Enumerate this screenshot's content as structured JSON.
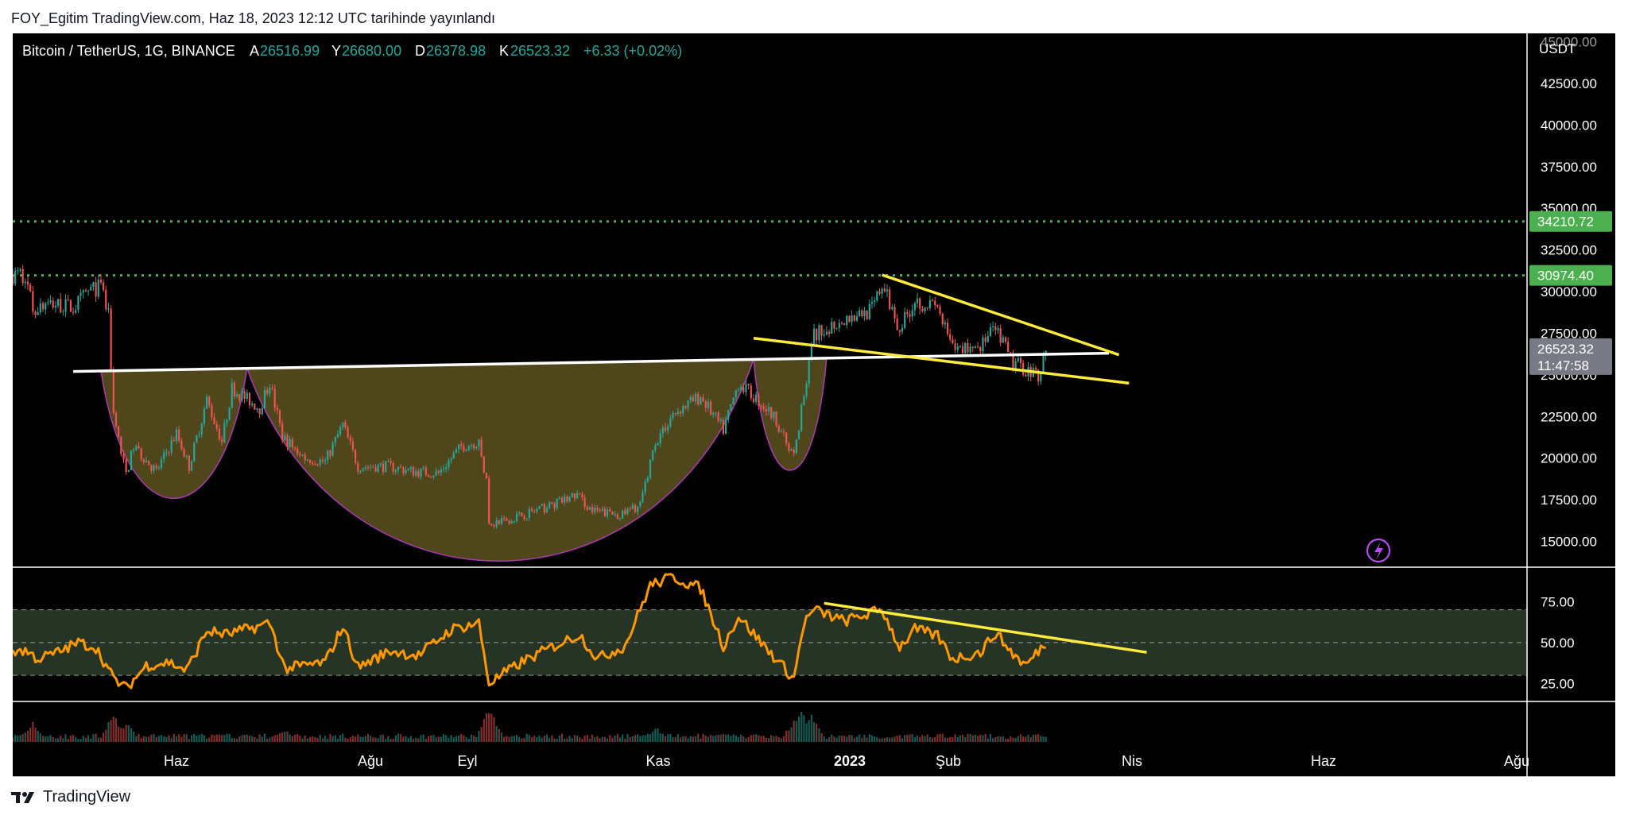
{
  "header": {
    "published": "FOY_Egitim TradingView.com, Haz 18, 2023 12:12 UTC tarihinde yayınlandı"
  },
  "legend": {
    "symbol": "Bitcoin / TetherUS, 1G, BINANCE",
    "o_label": "A",
    "o_value": "26516.99",
    "h_label": "Y",
    "h_value": "26680.00",
    "l_label": "D",
    "l_value": "26378.98",
    "c_label": "K",
    "c_value": "26523.32",
    "change": "+6.33 (+0.02%)"
  },
  "price_axis": {
    "currency": "USDT",
    "ticks": [
      "45000.00",
      "42500.00",
      "40000.00",
      "37500.00",
      "35000.00",
      "32500.00",
      "30000.00",
      "27500.00",
      "25000.00",
      "22500.00",
      "20000.00",
      "17500.00",
      "15000.00"
    ]
  },
  "levels": [
    {
      "value": "34210.72",
      "color": "#4caf50"
    },
    {
      "value": "30974.40",
      "color": "#4caf50"
    }
  ],
  "last_price": {
    "value": "26523.32",
    "countdown": "11:47:58",
    "color": "#787b86"
  },
  "rsi_axis": {
    "ticks": [
      "75.00",
      "50.00",
      "25.00"
    ]
  },
  "time_axis": {
    "labels": [
      {
        "text": "Haz",
        "bold": false
      },
      {
        "text": "Ağu",
        "bold": false
      },
      {
        "text": "Eyl",
        "bold": false
      },
      {
        "text": "Kas",
        "bold": false
      },
      {
        "text": "2023",
        "bold": true
      },
      {
        "text": "Şub",
        "bold": false
      },
      {
        "text": "Nis",
        "bold": false
      },
      {
        "text": "Haz",
        "bold": false
      },
      {
        "text": "Ağu",
        "bold": false
      }
    ]
  },
  "footer": {
    "brand": "TradingView"
  },
  "colors": {
    "up": "#26a69a",
    "down": "#ef5350",
    "background": "#000000",
    "level_line": "#4caf50",
    "trendline": "#ffeb3b",
    "neckline": "#ffffff",
    "rsi_line": "#ff9800",
    "cup_fill": "#5d5320",
    "cup_stroke": "#e040fb"
  },
  "chart_data": {
    "type": "candlestick",
    "price_range": [
      13500,
      45500
    ],
    "rsi_range": [
      15,
      95
    ],
    "price_series": [
      {
        "d": "2022-05-09",
        "p": 31000
      },
      {
        "d": "2022-05-12",
        "p": 29000
      },
      {
        "d": "2022-05-20",
        "p": 29300
      },
      {
        "d": "2022-05-28",
        "p": 29000
      },
      {
        "d": "2022-06-03",
        "p": 30000
      },
      {
        "d": "2022-06-08",
        "p": 30300
      },
      {
        "d": "2022-06-11",
        "p": 28500
      },
      {
        "d": "2022-06-13",
        "p": 22500
      },
      {
        "d": "2022-06-18",
        "p": 19000
      },
      {
        "d": "2022-06-21",
        "p": 20700
      },
      {
        "d": "2022-06-30",
        "p": 19200
      },
      {
        "d": "2022-07-08",
        "p": 21500
      },
      {
        "d": "2022-07-13",
        "p": 19500
      },
      {
        "d": "2022-07-20",
        "p": 23500
      },
      {
        "d": "2022-07-26",
        "p": 21000
      },
      {
        "d": "2022-07-30",
        "p": 24200
      },
      {
        "d": "2022-08-10",
        "p": 23000
      },
      {
        "d": "2022-08-14",
        "p": 24500
      },
      {
        "d": "2022-08-19",
        "p": 21300
      },
      {
        "d": "2022-08-28",
        "p": 20000
      },
      {
        "d": "2022-09-05",
        "p": 19800
      },
      {
        "d": "2022-09-12",
        "p": 22000
      },
      {
        "d": "2022-09-18",
        "p": 19500
      },
      {
        "d": "2022-09-30",
        "p": 19500
      },
      {
        "d": "2022-10-10",
        "p": 19200
      },
      {
        "d": "2022-10-20",
        "p": 19100
      },
      {
        "d": "2022-10-29",
        "p": 20700
      },
      {
        "d": "2022-11-05",
        "p": 21000
      },
      {
        "d": "2022-11-08",
        "p": 18500
      },
      {
        "d": "2022-11-09",
        "p": 16000
      },
      {
        "d": "2022-11-20",
        "p": 16500
      },
      {
        "d": "2022-12-01",
        "p": 17000
      },
      {
        "d": "2022-12-14",
        "p": 17800
      },
      {
        "d": "2022-12-20",
        "p": 16800
      },
      {
        "d": "2023-01-01",
        "p": 16600
      },
      {
        "d": "2023-01-08",
        "p": 17200
      },
      {
        "d": "2023-01-14",
        "p": 21000
      },
      {
        "d": "2023-01-22",
        "p": 22800
      },
      {
        "d": "2023-02-01",
        "p": 23700
      },
      {
        "d": "2023-02-10",
        "p": 21700
      },
      {
        "d": "2023-02-16",
        "p": 24500
      },
      {
        "d": "2023-02-25",
        "p": 23300
      },
      {
        "d": "2023-03-03",
        "p": 22300
      },
      {
        "d": "2023-03-10",
        "p": 20000
      },
      {
        "d": "2023-03-15",
        "p": 24800
      },
      {
        "d": "2023-03-18",
        "p": 27400
      },
      {
        "d": "2023-03-30",
        "p": 28400
      },
      {
        "d": "2023-04-10",
        "p": 28900
      },
      {
        "d": "2023-04-14",
        "p": 30400
      },
      {
        "d": "2023-04-21",
        "p": 27800
      },
      {
        "d": "2023-04-27",
        "p": 29500
      },
      {
        "d": "2023-05-06",
        "p": 29000
      },
      {
        "d": "2023-05-12",
        "p": 26500
      },
      {
        "d": "2023-05-23",
        "p": 26800
      },
      {
        "d": "2023-05-29",
        "p": 27700
      },
      {
        "d": "2023-06-05",
        "p": 25700
      },
      {
        "d": "2023-06-15",
        "p": 25000
      },
      {
        "d": "2023-06-18",
        "p": 26523
      }
    ],
    "rsi_series": [
      {
        "d": "2022-05-09",
        "v": 45
      },
      {
        "d": "2022-05-14",
        "v": 40
      },
      {
        "d": "2022-05-22",
        "v": 44
      },
      {
        "d": "2022-05-30",
        "v": 50
      },
      {
        "d": "2022-06-06",
        "v": 47
      },
      {
        "d": "2022-06-13",
        "v": 28
      },
      {
        "d": "2022-06-18",
        "v": 22
      },
      {
        "d": "2022-06-26",
        "v": 36
      },
      {
        "d": "2022-07-05",
        "v": 38
      },
      {
        "d": "2022-07-12",
        "v": 33
      },
      {
        "d": "2022-07-20",
        "v": 57
      },
      {
        "d": "2022-07-28",
        "v": 55
      },
      {
        "d": "2022-08-10",
        "v": 60
      },
      {
        "d": "2022-08-14",
        "v": 62
      },
      {
        "d": "2022-08-20",
        "v": 34
      },
      {
        "d": "2022-09-05",
        "v": 38
      },
      {
        "d": "2022-09-12",
        "v": 60
      },
      {
        "d": "2022-09-18",
        "v": 35
      },
      {
        "d": "2022-10-01",
        "v": 45
      },
      {
        "d": "2022-10-12",
        "v": 42
      },
      {
        "d": "2022-10-25",
        "v": 58
      },
      {
        "d": "2022-11-05",
        "v": 62
      },
      {
        "d": "2022-11-09",
        "v": 25
      },
      {
        "d": "2022-11-22",
        "v": 38
      },
      {
        "d": "2022-12-05",
        "v": 48
      },
      {
        "d": "2022-12-15",
        "v": 55
      },
      {
        "d": "2022-12-22",
        "v": 40
      },
      {
        "d": "2023-01-02",
        "v": 48
      },
      {
        "d": "2023-01-12",
        "v": 85
      },
      {
        "d": "2023-01-21",
        "v": 90
      },
      {
        "d": "2023-02-01",
        "v": 83
      },
      {
        "d": "2023-02-10",
        "v": 48
      },
      {
        "d": "2023-02-16",
        "v": 66
      },
      {
        "d": "2023-02-25",
        "v": 50
      },
      {
        "d": "2023-03-10",
        "v": 28
      },
      {
        "d": "2023-03-14",
        "v": 62
      },
      {
        "d": "2023-03-18",
        "v": 70
      },
      {
        "d": "2023-03-30",
        "v": 63
      },
      {
        "d": "2023-04-14",
        "v": 70
      },
      {
        "d": "2023-04-21",
        "v": 47
      },
      {
        "d": "2023-04-27",
        "v": 58
      },
      {
        "d": "2023-05-06",
        "v": 54
      },
      {
        "d": "2023-05-12",
        "v": 40
      },
      {
        "d": "2023-05-23",
        "v": 44
      },
      {
        "d": "2023-05-29",
        "v": 56
      },
      {
        "d": "2023-06-05",
        "v": 43
      },
      {
        "d": "2023-06-10",
        "v": 36
      },
      {
        "d": "2023-06-18",
        "v": 50
      }
    ],
    "volume_series": [
      {
        "d": "2022-05-12",
        "v": 0.55
      },
      {
        "d": "2022-06-13",
        "v": 0.8
      },
      {
        "d": "2022-06-18",
        "v": 0.6
      },
      {
        "d": "2022-08-20",
        "v": 0.35
      },
      {
        "d": "2022-11-09",
        "v": 1.0
      },
      {
        "d": "2022-11-10",
        "v": 0.75
      },
      {
        "d": "2023-01-14",
        "v": 0.45
      },
      {
        "d": "2023-03-10",
        "v": 0.6
      },
      {
        "d": "2023-03-13",
        "v": 0.85
      },
      {
        "d": "2023-03-17",
        "v": 0.75
      }
    ],
    "levels": [
      34210.72,
      30974.4
    ],
    "neckline": [
      {
        "d": "2022-05-28",
        "p": 25200
      },
      {
        "d": "2023-07-13",
        "p": 26300
      }
    ],
    "wedge_upper": [
      {
        "d": "2023-04-14",
        "p": 31000
      },
      {
        "d": "2023-07-17",
        "p": 26200
      }
    ],
    "wedge_lower": [
      {
        "d": "2023-02-22",
        "p": 27200
      },
      {
        "d": "2023-07-21",
        "p": 24500
      }
    ],
    "rsi_trendline": [
      {
        "d": "2023-03-22",
        "v": 74
      },
      {
        "d": "2023-07-28",
        "v": 44
      }
    ],
    "cups": [
      {
        "from": "2022-06-08",
        "to": "2022-08-05",
        "bottom": 17500
      },
      {
        "from": "2022-08-05",
        "to": "2023-02-22",
        "bottom": 13700
      },
      {
        "from": "2023-02-22",
        "to": "2023-03-23",
        "bottom": 19200
      }
    ],
    "ranges": {
      "start": "2022-05-04",
      "end": "2023-06-18"
    }
  }
}
